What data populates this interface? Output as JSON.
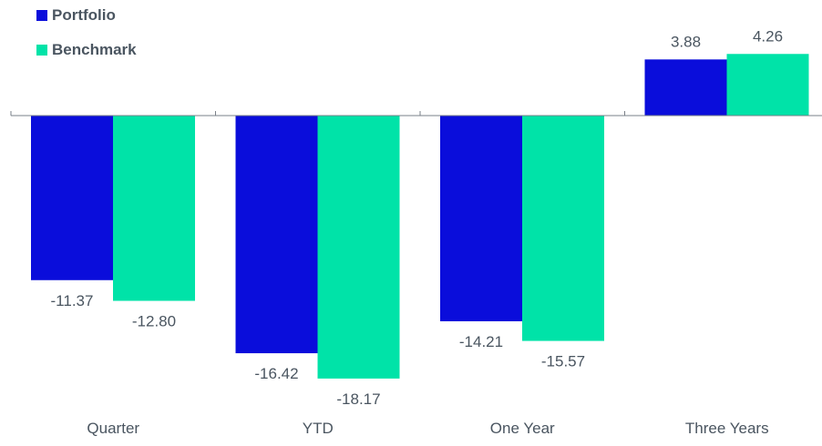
{
  "chart_data": {
    "type": "bar",
    "categories": [
      "Quarter",
      "YTD",
      "One Year",
      "Three Years"
    ],
    "series": [
      {
        "name": "Portfolio",
        "color": "#0a0ddb",
        "values": [
          -11.37,
          -16.42,
          -14.21,
          3.88
        ],
        "labels": [
          "-11.37",
          "-16.42",
          "-14.21",
          "3.88"
        ]
      },
      {
        "name": "Benchmark",
        "color": "#00e3a8",
        "values": [
          -12.8,
          -18.17,
          -15.57,
          4.26
        ],
        "labels": [
          "-12.80",
          "-18.17",
          "-15.57",
          "4.26"
        ]
      }
    ],
    "ylim": [
      -18.17,
      4.26
    ],
    "grid": false,
    "legend": "top-left"
  }
}
